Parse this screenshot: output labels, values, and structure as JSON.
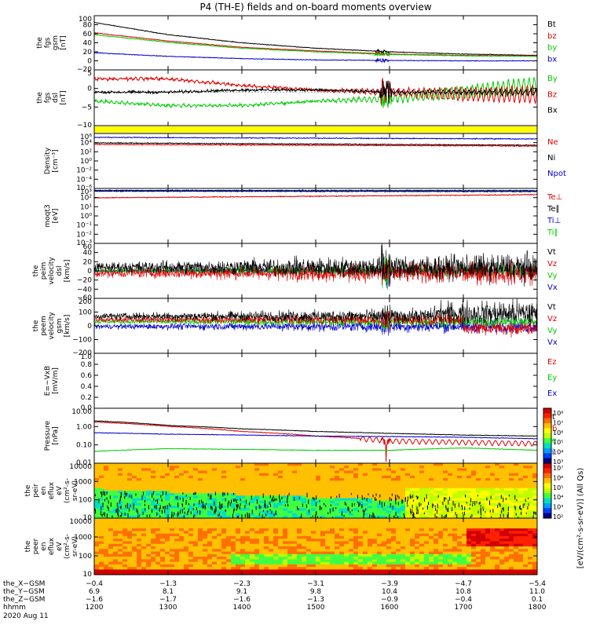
{
  "title": "P4 (TH-E) fields and on-board moments overview",
  "colors": {
    "black": "#000000",
    "red": "#e00000",
    "green": "#00cc00",
    "blue": "#0000cc",
    "yellow": "#ffff00"
  },
  "panels": [
    {
      "id": "fgs-gsm",
      "ylabel": [
        "the",
        "fgs",
        "gsm",
        "[nT]"
      ],
      "yticks": [
        "100",
        "80",
        "60",
        "40",
        "20",
        "0",
        "−20"
      ],
      "ylim": [
        -20,
        100
      ],
      "legend": [
        {
          "label": "Bt",
          "color": "#000000"
        },
        {
          "label": "bz",
          "color": "#e00000"
        },
        {
          "label": "by",
          "color": "#00cc00"
        },
        {
          "label": "bx",
          "color": "#0000cc"
        }
      ]
    },
    {
      "id": "fgs-dsl",
      "ylabel": [
        "the",
        "fgs",
        "dsl",
        "[nT]"
      ],
      "yticks": [
        "5",
        "0",
        "−5",
        "−10"
      ],
      "ylim": [
        -15,
        10
      ],
      "legend": [
        {
          "label": "By",
          "color": "#00cc00"
        },
        {
          "label": "Bz",
          "color": "#e00000"
        },
        {
          "label": "Bx",
          "color": "#000000"
        }
      ]
    },
    {
      "id": "density",
      "ylabel": [
        "Density",
        "[cm⁻³]"
      ],
      "yticks": [
        "10⁶",
        "10⁴",
        "10²",
        "10⁰",
        "10⁻²",
        "10⁻⁴",
        "10⁻⁶"
      ],
      "legend": [
        {
          "label": "Ne",
          "color": "#e00000"
        },
        {
          "label": "Ni",
          "color": "#000000"
        },
        {
          "label": "Npot",
          "color": "#0000cc"
        }
      ]
    },
    {
      "id": "temperature",
      "ylabel": [
        "moqt3",
        "[eV]"
      ],
      "yticks": [
        "10³",
        "10²",
        "10¹",
        "10⁰",
        "10⁻¹",
        "10⁻²",
        "10⁻³"
      ],
      "legend": [
        {
          "label": "Te⊥",
          "color": "#e00000"
        },
        {
          "label": "Te∥",
          "color": "#000000"
        },
        {
          "label": "Ti⊥",
          "color": "#0000cc"
        },
        {
          "label": "Ti∥",
          "color": "#00cc00"
        }
      ]
    },
    {
      "id": "peim-velocity-dsl",
      "ylabel": [
        "the",
        "peim",
        "velocity",
        "dsl",
        "[km/s]"
      ],
      "yticks": [
        "60",
        "40",
        "20",
        "0",
        "−20",
        "−40",
        "−60"
      ],
      "ylim": [
        -60,
        60
      ],
      "legend": [
        {
          "label": "Vt",
          "color": "#000000"
        },
        {
          "label": "Vz",
          "color": "#e00000"
        },
        {
          "label": "Vy",
          "color": "#00cc00"
        },
        {
          "label": "Vx",
          "color": "#0000cc"
        }
      ]
    },
    {
      "id": "peem-velocity-gsm",
      "ylabel": [
        "the",
        "peem",
        "velocity",
        "gsm",
        "[km/s]"
      ],
      "yticks": [
        "200",
        "100",
        "0",
        "−100",
        "−200"
      ],
      "ylim": [
        -200,
        200
      ],
      "legend": [
        {
          "label": "Vt",
          "color": "#000000"
        },
        {
          "label": "Vz",
          "color": "#e00000"
        },
        {
          "label": "Vy",
          "color": "#00cc00"
        },
        {
          "label": "Vx",
          "color": "#0000cc"
        }
      ]
    },
    {
      "id": "efield",
      "ylabel": [
        "E=−VxB",
        "[mV/m]"
      ],
      "yticks": [
        "1.0",
        "0.8",
        "0.6",
        "0.4",
        "0.2",
        "0.0"
      ],
      "ylim": [
        0,
        1
      ],
      "legend": [
        {
          "label": "Ez",
          "color": "#e00000"
        },
        {
          "label": "Ey",
          "color": "#00cc00"
        },
        {
          "label": "Ex",
          "color": "#0000cc"
        }
      ]
    },
    {
      "id": "pressure",
      "ylabel": [
        "Pressure",
        "[nPa]"
      ],
      "yticks": [
        "10.00",
        "1.00",
        "0.10",
        "0.01"
      ],
      "legend": [
        {
          "label": "Pt",
          "color": "#000000"
        },
        {
          "label": "Pb",
          "color": "#e00000"
        },
        {
          "label": "Pe",
          "color": "#00cc00"
        },
        {
          "label": "Pi",
          "color": "#0000cc"
        }
      ]
    },
    {
      "id": "peir-spectrogram",
      "ylabel": [
        "the",
        "peir",
        "en",
        "eflux",
        "eV",
        "(cm²-s-",
        "sr-eV)"
      ],
      "yticks": [
        "10000",
        "1000",
        "100",
        "10"
      ]
    },
    {
      "id": "peer-spectrogram",
      "ylabel": [
        "the",
        "peer",
        "en",
        "eflux",
        "eV",
        "(cm²-s-",
        "sr-eV)"
      ],
      "yticks": [
        "10000",
        "1000",
        "100",
        "10"
      ]
    }
  ],
  "colorbar": {
    "label": "[eV/(cm²-s-sr-eV)] (All Qs)",
    "ticks_top": [
      "10⁸",
      "10⁷",
      "10⁶",
      "10⁵",
      "10⁴",
      "10³"
    ],
    "ticks_bottom": [
      "10⁷",
      "10⁶",
      "10⁵",
      "10⁴",
      "10³",
      "10²"
    ]
  },
  "xaxis": {
    "rows": [
      {
        "label": "the_X−GSM",
        "values": [
          "−0.4",
          "−1.3",
          "−2.3",
          "−3.1",
          "−3.9",
          "−4.7",
          "−5.4"
        ]
      },
      {
        "label": "the_Y−GSM",
        "values": [
          "6.9",
          "8.1",
          "9.1",
          "9.8",
          "10.4",
          "10.8",
          "11.0"
        ]
      },
      {
        "label": "the_Z−GSM",
        "values": [
          "−1.6",
          "−1.7",
          "−1.6",
          "−1.3",
          "−0.9",
          "−0.4",
          "0.1"
        ]
      },
      {
        "label": "hhmm",
        "values": [
          "1200",
          "1300",
          "1400",
          "1500",
          "1600",
          "1700",
          "1800"
        ]
      }
    ],
    "date": "2020 Aug 11"
  },
  "chart_data": [
    {
      "type": "line",
      "panel": "fgs-gsm",
      "x": [
        1200,
        1300,
        1400,
        1500,
        1600,
        1700,
        1800
      ],
      "series": [
        {
          "name": "Bt",
          "values": [
            85,
            58,
            40,
            28,
            20,
            15,
            12
          ]
        },
        {
          "name": "bz",
          "values": [
            62,
            44,
            30,
            22,
            15,
            12,
            11
          ]
        },
        {
          "name": "by",
          "values": [
            58,
            41,
            28,
            20,
            14,
            11,
            10
          ]
        },
        {
          "name": "bx",
          "values": [
            18,
            10,
            5,
            2,
            1,
            0,
            0
          ]
        }
      ]
    },
    {
      "type": "line",
      "panel": "fgs-dsl",
      "x": [
        1200,
        1300,
        1400,
        1500,
        1600,
        1700,
        1800
      ],
      "series": [
        {
          "name": "By",
          "values": [
            -4,
            -6,
            -6,
            -4,
            -3,
            0,
            3
          ]
        },
        {
          "name": "Bz",
          "values": [
            6,
            6,
            3,
            1,
            0,
            -1,
            -1
          ]
        },
        {
          "name": "Bx",
          "values": [
            0,
            0,
            1,
            1,
            0,
            0,
            0
          ]
        }
      ]
    },
    {
      "type": "line",
      "panel": "pressure",
      "x": [
        1200,
        1300,
        1400,
        1500,
        1600,
        1700,
        1800
      ],
      "series": [
        {
          "name": "Pt",
          "values": [
            3.0,
            1.5,
            0.9,
            0.6,
            0.45,
            0.35,
            0.3
          ]
        },
        {
          "name": "Pb",
          "values": [
            2.5,
            1.3,
            0.6,
            0.3,
            0.15,
            0.12,
            0.1
          ]
        },
        {
          "name": "Pe",
          "values": [
            0.03,
            0.045,
            0.04,
            0.035,
            0.035,
            0.05,
            0.035
          ]
        },
        {
          "name": "Pi",
          "values": [
            0.5,
            0.4,
            0.35,
            0.3,
            0.28,
            0.25,
            0.2
          ]
        }
      ]
    }
  ]
}
